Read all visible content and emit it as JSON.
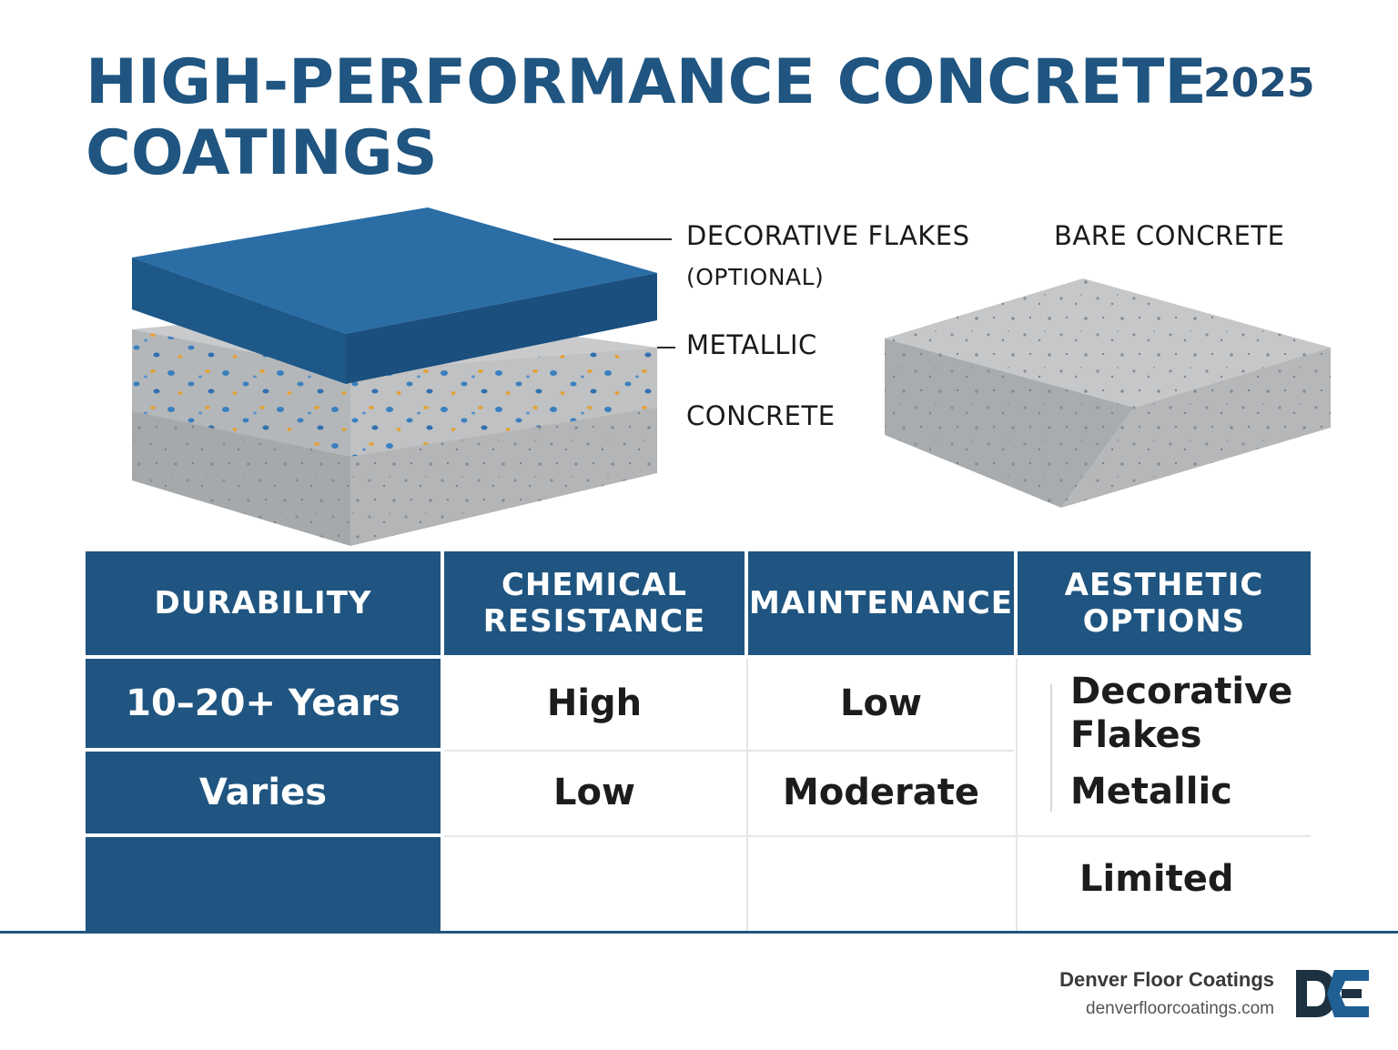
{
  "header": {
    "title_line1": "HIGH-PERFORMANCE CONCRETE",
    "title_line2": "COATINGS",
    "year": "2025"
  },
  "diagram": {
    "labels": {
      "decorative_flakes": "DECORATIVE FLAKES",
      "optional": "(OPTIONAL)",
      "metallic": "METALLIC",
      "concrete": "CONCRETE",
      "bare_concrete": "BARE CONCRETE"
    },
    "colors": {
      "coating_blue": "#1f5f94",
      "concrete_gray": "#a9acae",
      "flake_blue": "#3a7fc0",
      "flake_orange": "#e2a23a"
    }
  },
  "table": {
    "headers": [
      "DURABILITY",
      "CHEMICAL RESISTANCE",
      "MAINTENANCE",
      "AESTHETIC OPTIONS"
    ],
    "rows": [
      {
        "durability": "10–20+ Years",
        "chemical": "High",
        "maintenance": "Low"
      },
      {
        "durability": "Varies",
        "chemical": "Low",
        "maintenance": "Moderate"
      }
    ],
    "aesthetic_options": [
      "Decorative",
      "Flakes",
      "Metallic",
      "Limited"
    ],
    "colors": {
      "header_bg": "#1f5580",
      "header_text": "#ffffff"
    }
  },
  "footer": {
    "brand_name": "Denver Floor Coatings",
    "brand_url": "denverfloorcoatings.com",
    "logo_text": "DFC",
    "logo_icon": "dfc-monogram-icon"
  }
}
